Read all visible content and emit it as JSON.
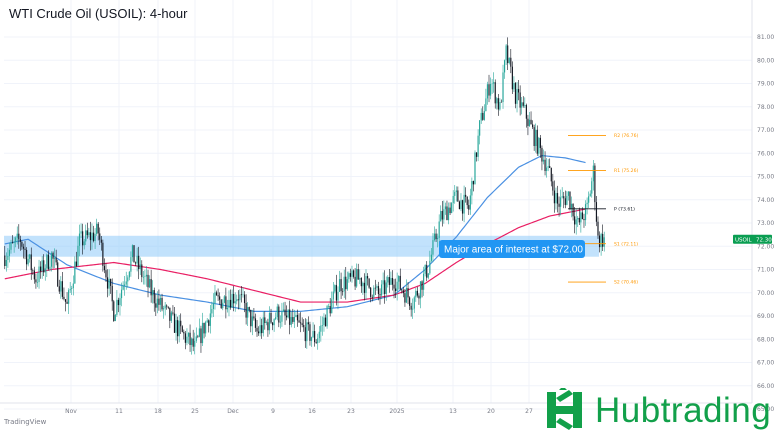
{
  "title": "WTI Crude Oil (USOIL): 4-hour",
  "brand": "TradingView",
  "logo_text": "Hubtrading",
  "colors": {
    "bull": "#26a69a",
    "bear": "#131722",
    "sma100": "#4a90e2",
    "sma200": "#e91e63",
    "zone": "#90caf9",
    "label_bg": "#2196f3",
    "resistance": "#ff9800",
    "pivot": "#131722",
    "support": "#ff9800",
    "price_tag": "#0a9e52"
  },
  "chart_data": {
    "type": "candlestick",
    "y_ticks": [
      "81.00",
      "80.00",
      "79.00",
      "78.00",
      "77.00",
      "76.00",
      "75.00",
      "74.00",
      "73.00",
      "72.00",
      "71.00",
      "70.00",
      "69.00",
      "68.00",
      "67.00",
      "66.00",
      "65.00"
    ],
    "x_ticks": [
      "Nov",
      "11",
      "18",
      "25",
      "Dec",
      "9",
      "16",
      "23",
      "2025",
      "13",
      "20",
      "27"
    ],
    "ylim": [
      64.5,
      81.6
    ],
    "price_tag": {
      "symbol": "USOIL",
      "value": "72.30"
    },
    "zone": {
      "from": 71.55,
      "to": 72.45
    },
    "annotation": "Major area of interest at $72.00",
    "pivots": [
      {
        "label": "R2 (76.76)",
        "value": 76.76,
        "kind": "resistance"
      },
      {
        "label": "R1 (75.26)",
        "value": 75.26,
        "kind": "resistance"
      },
      {
        "label": "P (73.61)",
        "value": 73.61,
        "kind": "pivot"
      },
      {
        "label": "S1 (72.11)",
        "value": 72.11,
        "kind": "support"
      },
      {
        "label": "S2 (70.46)",
        "value": 70.46,
        "kind": "support"
      }
    ],
    "anchors": [
      [
        0,
        71.6
      ],
      [
        10,
        72.3
      ],
      [
        20,
        70.6
      ],
      [
        30,
        71.6
      ],
      [
        40,
        69.4
      ],
      [
        48,
        72.2
      ],
      [
        60,
        72.6
      ],
      [
        70,
        69.2
      ],
      [
        82,
        71.6
      ],
      [
        95,
        69.9
      ],
      [
        108,
        68.7
      ],
      [
        122,
        67.6
      ],
      [
        135,
        69.6
      ],
      [
        150,
        69.9
      ],
      [
        162,
        68.3
      ],
      [
        175,
        69.1
      ],
      [
        188,
        68.6
      ],
      [
        200,
        68.0
      ],
      [
        215,
        70.4
      ],
      [
        228,
        70.6
      ],
      [
        240,
        69.9
      ],
      [
        250,
        70.6
      ],
      [
        262,
        69.6
      ],
      [
        272,
        71.1
      ],
      [
        280,
        73.2
      ],
      [
        290,
        74.1
      ],
      [
        298,
        73.6
      ],
      [
        305,
        77.1
      ],
      [
        312,
        79.2
      ],
      [
        318,
        77.9
      ],
      [
        322,
        80.3
      ],
      [
        328,
        78.5
      ],
      [
        335,
        77.6
      ],
      [
        342,
        76.4
      ],
      [
        348,
        75.5
      ],
      [
        355,
        73.8
      ],
      [
        362,
        74.2
      ],
      [
        368,
        72.9
      ],
      [
        374,
        73.6
      ],
      [
        378,
        75.2
      ],
      [
        381,
        72.3
      ],
      [
        385,
        72.3
      ]
    ],
    "sma100_anchors": [
      [
        0,
        72.1
      ],
      [
        15,
        72.3
      ],
      [
        40,
        71.2
      ],
      [
        70,
        70.4
      ],
      [
        100,
        69.9
      ],
      [
        130,
        69.6
      ],
      [
        160,
        69.2
      ],
      [
        190,
        69.2
      ],
      [
        220,
        69.4
      ],
      [
        250,
        69.9
      ],
      [
        270,
        71.0
      ],
      [
        290,
        72.4
      ],
      [
        310,
        74.1
      ],
      [
        330,
        75.4
      ],
      [
        345,
        75.9
      ],
      [
        360,
        75.8
      ],
      [
        373,
        75.6
      ]
    ],
    "sma200_anchors": [
      [
        0,
        70.6
      ],
      [
        30,
        71.0
      ],
      [
        70,
        71.3
      ],
      [
        100,
        71.0
      ],
      [
        130,
        70.6
      ],
      [
        160,
        70.1
      ],
      [
        190,
        69.6
      ],
      [
        220,
        69.6
      ],
      [
        250,
        69.9
      ],
      [
        270,
        70.4
      ],
      [
        290,
        71.3
      ],
      [
        310,
        72.1
      ],
      [
        330,
        72.8
      ],
      [
        350,
        73.3
      ],
      [
        373,
        73.6
      ]
    ]
  }
}
